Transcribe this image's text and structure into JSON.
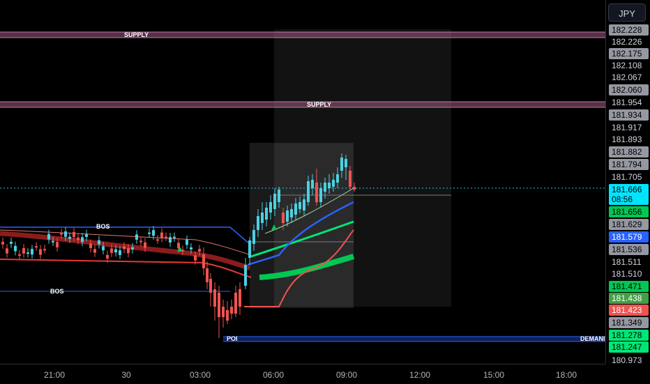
{
  "currency": {
    "label": "JPY"
  },
  "price_labels": [
    {
      "text": "182.228",
      "price": 182.228,
      "style": "gray"
    },
    {
      "text": "182.226",
      "price": 182.226,
      "style": "plain"
    },
    {
      "text": "182.175",
      "price": 182.175,
      "style": "gray"
    },
    {
      "text": "182.108",
      "price": 182.108,
      "style": "plain"
    },
    {
      "text": "182.067",
      "price": 182.067,
      "style": "plain"
    },
    {
      "text": "182.060",
      "price": 182.06,
      "style": "gray"
    },
    {
      "text": "181.954",
      "price": 181.954,
      "style": "plain"
    },
    {
      "text": "181.934",
      "price": 181.934,
      "style": "gray"
    },
    {
      "text": "181.917",
      "price": 181.917,
      "style": "plain"
    },
    {
      "text": "181.893",
      "price": 181.893,
      "style": "plain"
    },
    {
      "text": "181.882",
      "price": 181.882,
      "style": "gray"
    },
    {
      "text": "181.794",
      "price": 181.794,
      "style": "gray"
    },
    {
      "text": "181.705",
      "price": 181.705,
      "style": "plain"
    },
    {
      "text": "181.666",
      "price": 181.666,
      "style": "cyan"
    },
    {
      "text": "08:56",
      "price": null,
      "style": "cyan"
    },
    {
      "text": "181.656",
      "price": 181.656,
      "style": "green"
    },
    {
      "text": "181.629",
      "price": 181.629,
      "style": "gray"
    },
    {
      "text": "181.579",
      "price": 181.579,
      "style": "blue"
    },
    {
      "text": "181.536",
      "price": 181.536,
      "style": "gray"
    },
    {
      "text": "181.511",
      "price": 181.511,
      "style": "plain"
    },
    {
      "text": "181.510",
      "price": 181.51,
      "style": "plain"
    },
    {
      "text": "181.471",
      "price": 181.471,
      "style": "green"
    },
    {
      "text": "181.438",
      "price": 181.438,
      "style": "darkgreen"
    },
    {
      "text": "181.423",
      "price": 181.423,
      "style": "red"
    },
    {
      "text": "181.349",
      "price": 181.349,
      "style": "gray"
    },
    {
      "text": "181.278",
      "price": 181.278,
      "style": "lime"
    },
    {
      "text": "181.247",
      "price": 181.247,
      "style": "lime"
    },
    {
      "text": "180.973",
      "price": 180.973,
      "style": "plain"
    }
  ],
  "time_labels": [
    "21:00",
    "30",
    "03:00",
    "06:00",
    "09:00",
    "12:00",
    "15:00",
    "18:00"
  ],
  "annotations": {
    "supply_1": "SUPPLY",
    "supply_2": "SUPPLY",
    "bos_1": "BOS",
    "bos_2": "BOS",
    "poi": "POI",
    "demand": "DEMANI"
  },
  "colors": {
    "supply_zone": "#9c5a84",
    "demand_zone": "#2962ff",
    "bull": "#4dd0e1",
    "bear": "#ef5350",
    "ma_red": "#e53935",
    "ma_green": "#00c853",
    "ma_blue": "#2962ff",
    "current_price_line": "#26c6da"
  },
  "chart_data": {
    "type": "candlestick",
    "current_price": 181.666,
    "levels": {
      "supply_1": 182.228,
      "supply_2": 181.954,
      "bos_upper": 181.62,
      "bos_lower": 181.49,
      "poi_demand": 181.247
    }
  }
}
